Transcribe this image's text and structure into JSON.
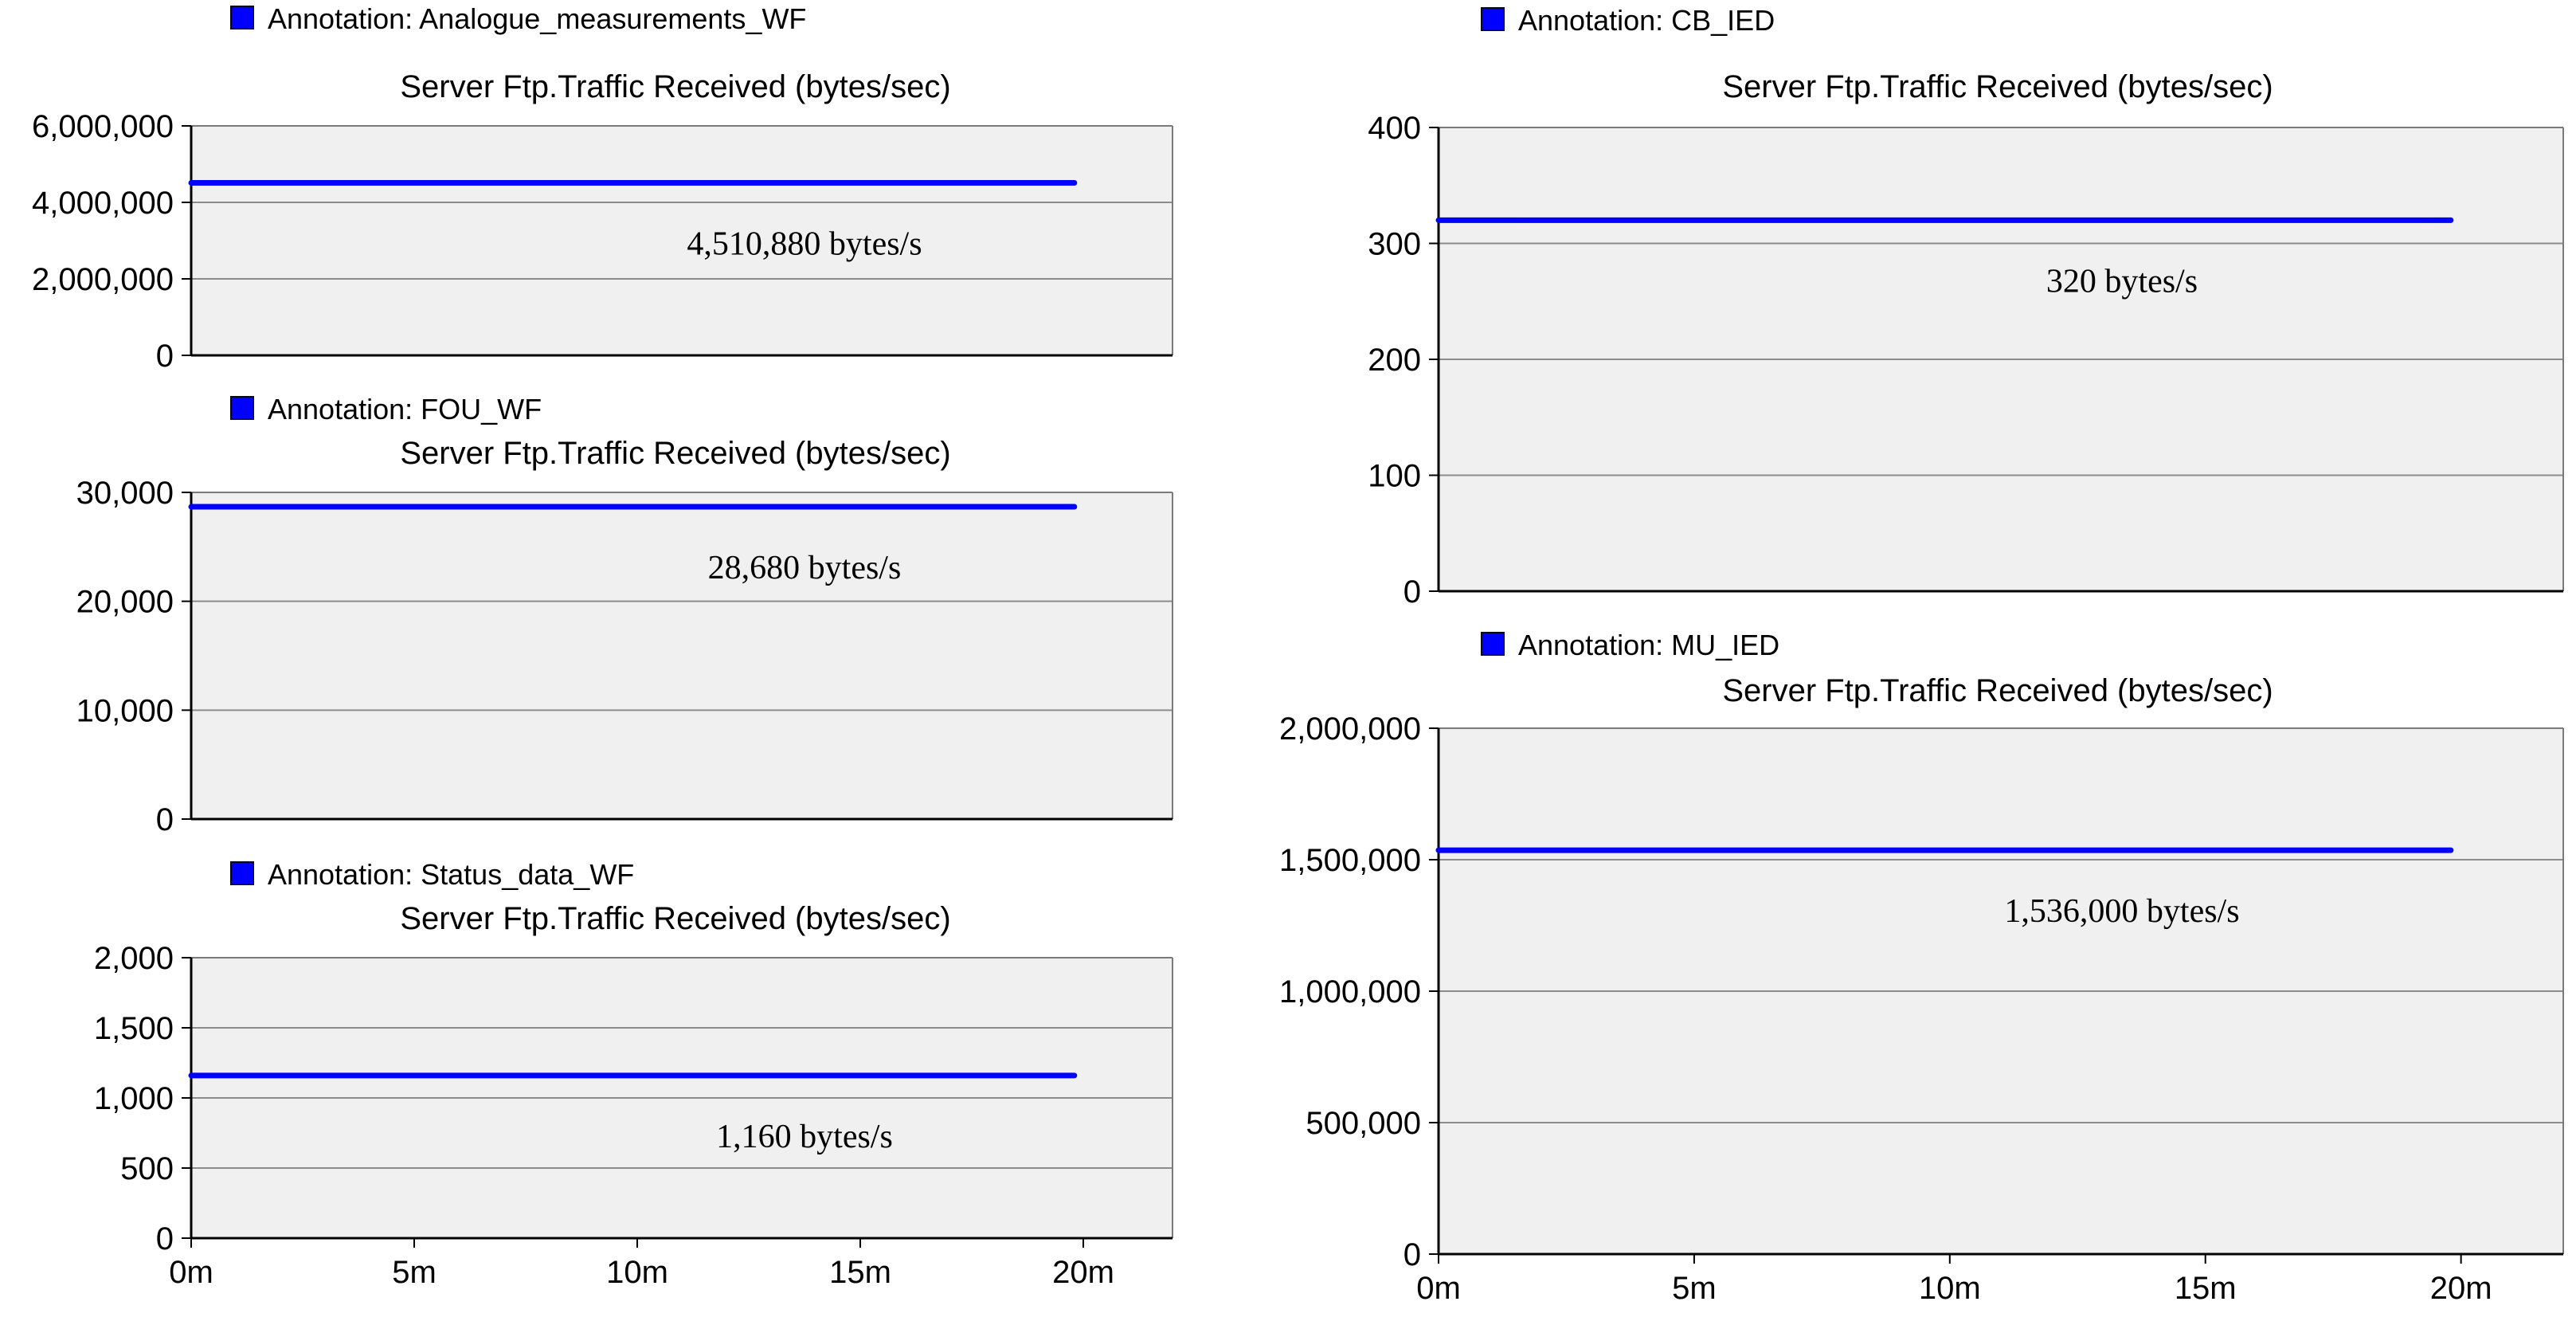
{
  "colors": {
    "series": "#0000ff",
    "plot_bg": "#f0f0f0",
    "grid": "#8c8c8c",
    "frame": "#7a7a7a"
  },
  "chart_data": [
    {
      "type": "line",
      "legend": "Annotation: Analogue_measurements_WF",
      "title": "Server Ftp.Traffic Received (bytes/sec)",
      "y_ticks": [
        0,
        2000000,
        4000000,
        6000000
      ],
      "y_tick_labels": [
        "0",
        "2,000,000",
        "4,000,000",
        "6,000,000"
      ],
      "ylim": [
        0,
        6000000
      ],
      "xlim": [
        0,
        22
      ],
      "x": [
        0,
        19.8
      ],
      "values": [
        4510880,
        4510880
      ],
      "annotation": "4,510,880 bytes/s",
      "annotation_value": 4510880
    },
    {
      "type": "line",
      "legend": "Annotation: FOU_WF",
      "title": "Server Ftp.Traffic Received (bytes/sec)",
      "y_ticks": [
        0,
        10000,
        20000,
        30000
      ],
      "y_tick_labels": [
        "0",
        "10,000",
        "20,000",
        "30,000"
      ],
      "ylim": [
        0,
        30000
      ],
      "xlim": [
        0,
        22
      ],
      "x": [
        0,
        19.8
      ],
      "values": [
        28680,
        28680
      ],
      "annotation": "28,680 bytes/s",
      "annotation_value": 28680
    },
    {
      "type": "line",
      "legend": "Annotation: Status_data_WF",
      "title": "Server Ftp.Traffic Received (bytes/sec)",
      "y_ticks": [
        0,
        500,
        1000,
        1500,
        2000
      ],
      "y_tick_labels": [
        "0",
        "500",
        "1,000",
        "1,500",
        "2,000"
      ],
      "ylim": [
        0,
        2000
      ],
      "xlim": [
        0,
        22
      ],
      "x_ticks": [
        0,
        5,
        10,
        15,
        20
      ],
      "x_tick_labels": [
        "0m",
        "5m",
        "10m",
        "15m",
        "20m"
      ],
      "x": [
        0,
        19.8
      ],
      "values": [
        1160,
        1160
      ],
      "annotation": "1,160 bytes/s",
      "annotation_value": 1160
    },
    {
      "type": "line",
      "legend": "Annotation: CB_IED",
      "title": "Server Ftp.Traffic Received (bytes/sec)",
      "y_ticks": [
        0,
        100,
        200,
        300,
        400
      ],
      "y_tick_labels": [
        "0",
        "100",
        "200",
        "300",
        "400"
      ],
      "ylim": [
        0,
        400
      ],
      "xlim": [
        0,
        22
      ],
      "x": [
        0,
        19.8
      ],
      "values": [
        320,
        320
      ],
      "annotation": "320 bytes/s",
      "annotation_value": 320
    },
    {
      "type": "line",
      "legend": "Annotation: MU_IED",
      "title": "Server Ftp.Traffic Received (bytes/sec)",
      "y_ticks": [
        0,
        500000,
        1000000,
        1500000,
        2000000
      ],
      "y_tick_labels": [
        "0",
        "500,000",
        "1,000,000",
        "1,500,000",
        "2,000,000"
      ],
      "ylim": [
        0,
        2000000
      ],
      "xlim": [
        0,
        22
      ],
      "x_ticks": [
        0,
        5,
        10,
        15,
        20
      ],
      "x_tick_labels": [
        "0m",
        "5m",
        "10m",
        "15m",
        "20m"
      ],
      "x": [
        0,
        19.8
      ],
      "values": [
        1536000,
        1536000
      ],
      "annotation": "1,536,000 bytes/s",
      "annotation_value": 1536000
    }
  ]
}
